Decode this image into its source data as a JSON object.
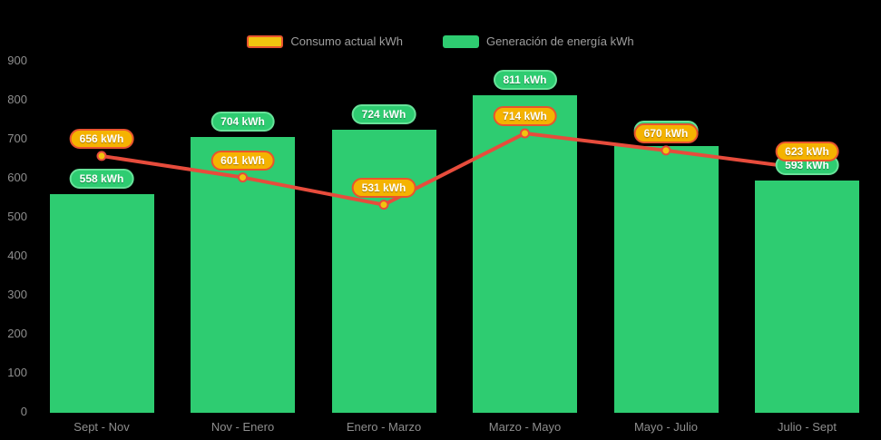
{
  "legend": {
    "items": [
      {
        "id": "consumo",
        "label": "Consumo actual kWh"
      },
      {
        "id": "generacion",
        "label": "Generación de energía kWh"
      }
    ]
  },
  "chart_data": {
    "type": "bar+line",
    "title": "",
    "categories": [
      "Sept - Nov",
      "Nov - Enero",
      "Enero - Marzo",
      "Marzo - Mayo",
      "Mayo - Julio",
      "Julio - Sept"
    ],
    "series": [
      {
        "name": "Generación de energía kWh",
        "type": "bar",
        "color": "#2ecc71",
        "values": [
          558,
          704,
          724,
          811,
          682,
          593
        ],
        "labels": [
          "558 kWh",
          "704 kWh",
          "724 kWh",
          "811 kWh",
          "682 kWh",
          "593 kWh"
        ]
      },
      {
        "name": "Consumo actual kWh",
        "type": "line",
        "color": "#e74c3c",
        "marker_fill": "#f1c40f",
        "marker_stroke": "#e74c3c",
        "values": [
          656,
          601,
          531,
          714,
          670,
          623
        ],
        "labels": [
          "656 kWh",
          "601 kWh",
          "531 kWh",
          "714 kWh",
          "670 kWh",
          "623 kWh"
        ]
      }
    ],
    "unit": "kWh",
    "ylim": [
      0,
      900
    ],
    "yticks": [
      0,
      100,
      200,
      300,
      400,
      500,
      600,
      700,
      800,
      900
    ],
    "grid": false,
    "legend_position": "top-center"
  },
  "colors": {
    "background": "#000000",
    "bar_fill": "#2ecc71",
    "line_stroke": "#e74c3c",
    "marker_fill": "#f1c40f",
    "badge_consumo_fill": "#f5b301",
    "badge_consumo_border": "#e8542e",
    "badge_generacion_fill": "#2ecc71",
    "badge_generacion_border": "#67e299",
    "axis_text": "#8e8e8e",
    "legend_text": "#9e9e9e"
  }
}
